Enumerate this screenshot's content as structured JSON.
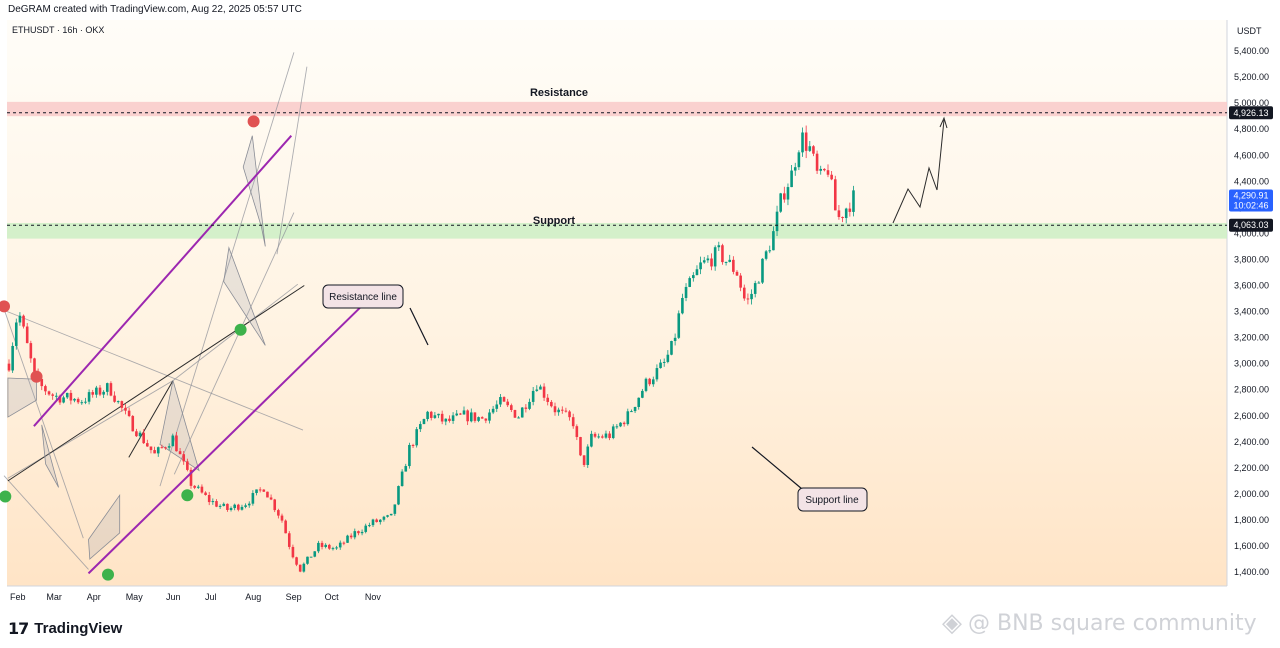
{
  "header": {
    "attribution": "DeGRAM created with TradingView.com, Aug 22, 2025 05:57 UTC"
  },
  "chart_data": {
    "type": "candlestick",
    "symbol_label": "ETHUSDT · 16h · OKX",
    "currency": "USDT",
    "x_tick_labels": [
      "Feb",
      "Mar",
      "Apr",
      "May",
      "Jun",
      "Jul",
      "Aug",
      "Sep",
      "Oct",
      "Nov"
    ],
    "y_tick_labels": [
      "5,400.00",
      "5,200.00",
      "5,000.00",
      "4,800.00",
      "4,600.00",
      "4,400.00",
      "4,200.00",
      "4,000.00",
      "3,800.00",
      "3,600.00",
      "3,400.00",
      "3,200.00",
      "3,000.00",
      "2,800.00",
      "2,600.00",
      "2,400.00",
      "2,200.00",
      "2,000.00",
      "1,800.00",
      "1,600.00",
      "1,400.00"
    ],
    "y_ticks": [
      5400,
      5200,
      5000,
      4800,
      4600,
      4400,
      4200,
      4000,
      3800,
      3600,
      3400,
      3200,
      3000,
      2800,
      2600,
      2400,
      2200,
      2000,
      1800,
      1600,
      1400
    ],
    "ylim": [
      1330,
      5640
    ],
    "price_labels": {
      "target": {
        "value": 4926.13,
        "text": "4,926.13"
      },
      "current": {
        "value": 4290.91,
        "text": "4,290.91",
        "countdown": "10:02:46"
      },
      "support": {
        "value": 4063.03,
        "text": "4,063.03"
      }
    },
    "zones": [
      {
        "label": "Resistance",
        "from": 4900,
        "to": 5010,
        "color": "#f9c9c9"
      },
      {
        "label": "Support",
        "from": 3960,
        "to": 4080,
        "color": "#cdeec4"
      }
    ],
    "callouts": {
      "resistance_line": "Resistance line",
      "support_line": "Support line"
    },
    "price_path": [
      [
        0,
        3000
      ],
      [
        1,
        3420
      ],
      [
        3,
        2850
      ],
      [
        5,
        2750
      ],
      [
        8,
        2720
      ],
      [
        11,
        2820
      ],
      [
        13,
        2580
      ],
      [
        16,
        2300
      ],
      [
        18,
        2430
      ],
      [
        20,
        2080
      ],
      [
        22,
        1950
      ],
      [
        24,
        1880
      ],
      [
        26,
        1930
      ],
      [
        28,
        2050
      ],
      [
        30,
        1800
      ],
      [
        31,
        1560
      ],
      [
        32,
        1420
      ],
      [
        34,
        1600
      ],
      [
        36,
        1580
      ],
      [
        38,
        1700
      ],
      [
        40,
        1780
      ],
      [
        42,
        1820
      ],
      [
        44,
        2350
      ],
      [
        46,
        2620
      ],
      [
        48,
        2550
      ],
      [
        50,
        2600
      ],
      [
        52,
        2580
      ],
      [
        54,
        2700
      ],
      [
        56,
        2600
      ],
      [
        58,
        2850
      ],
      [
        60,
        2650
      ],
      [
        62,
        2550
      ],
      [
        63,
        2200
      ],
      [
        64,
        2430
      ],
      [
        66,
        2450
      ],
      [
        68,
        2600
      ],
      [
        70,
        2850
      ],
      [
        72,
        3000
      ],
      [
        73,
        3150
      ],
      [
        74,
        3500
      ],
      [
        76,
        3750
      ],
      [
        78,
        3850
      ],
      [
        80,
        3700
      ],
      [
        81,
        3450
      ],
      [
        82,
        3600
      ],
      [
        84,
        4000
      ],
      [
        85,
        4300
      ],
      [
        86,
        4450
      ],
      [
        87,
        4750
      ],
      [
        88,
        4650
      ],
      [
        89,
        4400
      ],
      [
        90,
        4500
      ],
      [
        91,
        4100
      ],
      [
        92,
        4200
      ],
      [
        93,
        4290
      ]
    ],
    "projection": [
      [
        4100,
        4220
      ],
      [
        4300,
        4400
      ],
      [
        4420,
        4320
      ],
      [
        4560,
        4650
      ],
      [
        4720,
        4560
      ],
      [
        4926,
        4926
      ]
    ],
    "series": [
      {
        "name": "Resistance line",
        "points": [
          [
            "Feb 24",
            2520
          ],
          [
            "Sep 10",
            4750
          ]
        ],
        "color": "#9c27b0"
      },
      {
        "name": "Support line",
        "points": [
          [
            "Apr 7",
            1390
          ],
          [
            "Nov 6",
            3470
          ]
        ],
        "color": "#9c27b0"
      }
    ],
    "markers": [
      {
        "kind": "top",
        "date": "Feb 1",
        "price": 3440,
        "color": "#e05252"
      },
      {
        "kind": "top",
        "date": "Feb 26",
        "price": 2900,
        "color": "#e05252"
      },
      {
        "kind": "bottom",
        "date": "Feb 2",
        "price": 1980,
        "color": "#3db24b"
      },
      {
        "kind": "bottom",
        "date": "Apr 22",
        "price": 1380,
        "color": "#3db24b"
      },
      {
        "kind": "bottom",
        "date": "Jun 22",
        "price": 1990,
        "color": "#3db24b"
      },
      {
        "kind": "bottom",
        "date": "Aug 2",
        "price": 3260,
        "color": "#3db24b"
      },
      {
        "kind": "top",
        "date": "Aug 12",
        "price": 4860,
        "color": "#e05252"
      }
    ]
  },
  "footer": {
    "logo_text": "TradingView",
    "logo_mark": "17",
    "watermark_text": "@ BNB square community"
  },
  "colors": {
    "bull": "#089981",
    "bear": "#f23645",
    "channel": "#9c27b0",
    "target_label": "#131722",
    "current_label": "#2962ff"
  }
}
